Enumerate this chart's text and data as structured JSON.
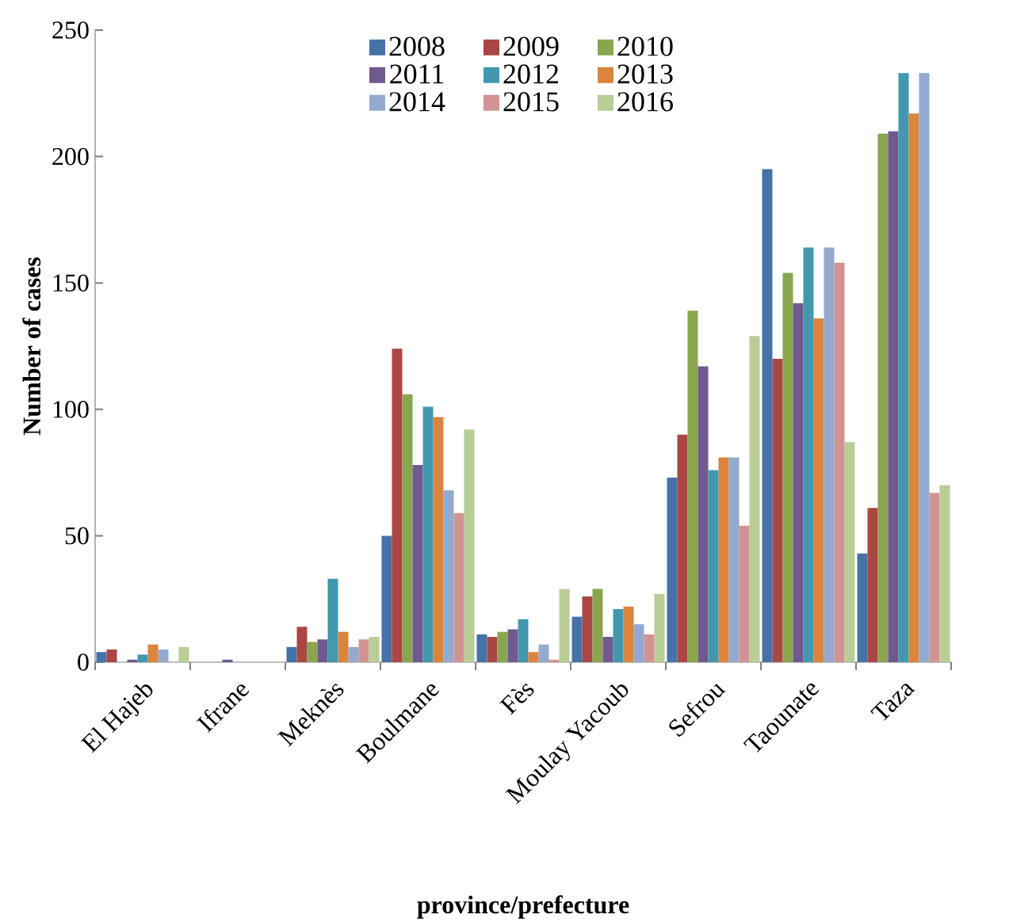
{
  "chart_data": {
    "type": "bar",
    "xlabel": "province/prefecture",
    "ylabel": "Number of cases",
    "categories": [
      "El Hajeb",
      "Ifrane",
      "Meknès",
      "Boulmane",
      "Fès",
      "Moulay Yacoub",
      "Sefrou",
      "Taounate",
      "Taza"
    ],
    "series": [
      {
        "name": "2008",
        "color": "#4572a7",
        "values": [
          4,
          0,
          6,
          50,
          11,
          18,
          73,
          195,
          43
        ]
      },
      {
        "name": "2009",
        "color": "#aa4643",
        "values": [
          5,
          0,
          14,
          124,
          10,
          26,
          90,
          120,
          61
        ]
      },
      {
        "name": "2010",
        "color": "#89a54e",
        "values": [
          0,
          0,
          8,
          106,
          12,
          29,
          139,
          154,
          209
        ]
      },
      {
        "name": "2011",
        "color": "#71588f",
        "values": [
          1,
          1,
          9,
          78,
          13,
          10,
          117,
          142,
          210
        ]
      },
      {
        "name": "2012",
        "color": "#4198af",
        "values": [
          3,
          0,
          33,
          101,
          17,
          21,
          76,
          164,
          233
        ]
      },
      {
        "name": "2013",
        "color": "#db843d",
        "values": [
          7,
          0,
          12,
          97,
          4,
          22,
          81,
          136,
          217
        ]
      },
      {
        "name": "2014",
        "color": "#93a9cf",
        "values": [
          5,
          0,
          6,
          68,
          7,
          15,
          81,
          164,
          233
        ]
      },
      {
        "name": "2015",
        "color": "#d19392",
        "values": [
          0,
          0,
          9,
          59,
          1,
          11,
          54,
          158,
          67
        ]
      },
      {
        "name": "2016",
        "color": "#b9cd96",
        "values": [
          6,
          0,
          10,
          92,
          29,
          27,
          129,
          87,
          70
        ]
      }
    ],
    "ylim": [
      0,
      250
    ],
    "yticks": [
      0,
      50,
      100,
      150,
      200,
      250
    ],
    "legend": "top"
  }
}
